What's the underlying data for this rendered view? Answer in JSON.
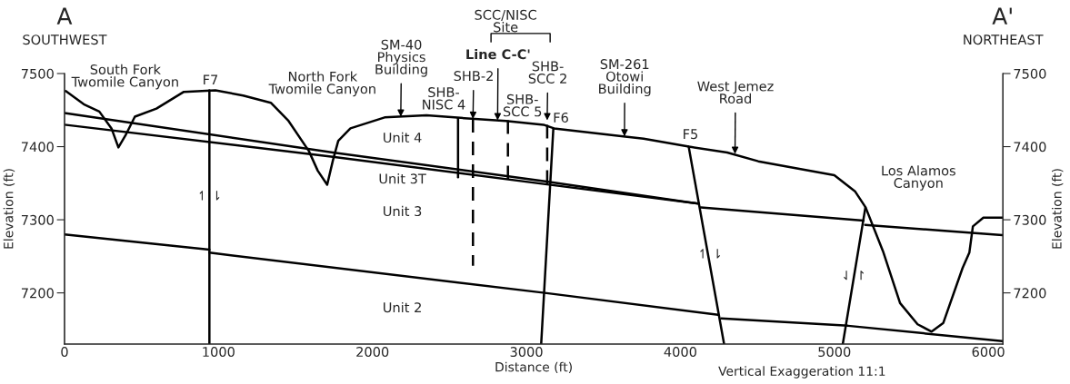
{
  "chart_data": {
    "type": "line",
    "xlabel": "Distance (ft)",
    "ylabel": "Elevation (ft)",
    "y2label": "Elevation (ft)",
    "xlim": [
      0,
      6095
    ],
    "xticks": [
      0,
      1000,
      2000,
      3000,
      4000,
      5000,
      6000
    ],
    "ylim": [
      7130,
      7500
    ],
    "yticks": [
      7200,
      7300,
      7400,
      7500
    ],
    "y2lim": [
      7130,
      7500
    ],
    "y2ticks": [
      7200,
      7300,
      7400,
      7500
    ],
    "grid": false,
    "legend": false,
    "series": [
      {
        "color": "#000000",
        "x": [
          8,
          125,
          226,
          305,
          350,
          395,
          457,
          597,
          775,
          980,
          1160,
          1340,
          1452,
          1587,
          1645,
          1706,
          1743,
          1778,
          1857,
          2079,
          2351,
          2598,
          2868,
          3111,
          3179,
          3629,
          3761,
          4056,
          4304,
          4506,
          5000,
          5134,
          5203,
          5316,
          5427,
          5541,
          5632,
          5708,
          5833,
          5877,
          5900,
          5968,
          6091
        ],
        "values": [
          7476,
          7458,
          7448,
          7425,
          7399,
          7415,
          7441,
          7452,
          7475,
          7477,
          7470,
          7460,
          7436,
          7394,
          7367,
          7348,
          7381,
          7408,
          7425,
          7440,
          7443,
          7439,
          7435,
          7430,
          7425,
          7414,
          7411,
          7400,
          7392,
          7380,
          7361,
          7339,
          7317,
          7257,
          7186,
          7157,
          7147,
          7159,
          7234,
          7255,
          7291,
          7303,
          7303
        ]
      },
      {
        "color": "#000000",
        "x": [
          0,
          1743,
          3111,
          4120
        ],
        "values": [
          7446,
          7392,
          7353,
          7322
        ]
      },
      {
        "color": "#000000",
        "x": [
          0,
          1743,
          3111,
          4120
        ],
        "values": [
          7430,
          7386,
          7349,
          7322
        ]
      },
      {
        "color": "#000000",
        "x": [
          4133,
          5190
        ],
        "values": [
          7317,
          7299
        ]
      },
      {
        "color": "#000000",
        "x": [
          5200,
          6091
        ],
        "values": [
          7293,
          7279
        ]
      },
      {
        "color": "#000000",
        "x": [
          0,
          941
        ],
        "values": [
          7280,
          7259
        ]
      },
      {
        "color": "#000000",
        "x": [
          941,
          3119,
          4245
        ],
        "values": [
          7255,
          7200,
          7170
        ]
      },
      {
        "color": "#000000",
        "x": [
          4266,
          5089,
          6091
        ],
        "values": [
          7165,
          7155,
          7134
        ]
      },
      {
        "color": "#000000",
        "x": [
          941,
          941
        ],
        "values": [
          7130,
          7477
        ]
      },
      {
        "color": "#000000",
        "x": [
          3096,
          3175
        ],
        "values": [
          7130,
          7425
        ]
      },
      {
        "color": "#000000",
        "x": [
          4054,
          4284
        ],
        "values": [
          7400,
          7130
        ]
      },
      {
        "color": "#000000",
        "x": [
          5055,
          5202
        ],
        "values": [
          7130,
          7317
        ]
      },
      {
        "color": "#000000",
        "x": [
          2556,
          2556
        ],
        "values": [
          7439,
          7358
        ],
        "line_style": "solid"
      },
      {
        "color": "#000000",
        "x": [
          2653,
          2653
        ],
        "values": [
          7438,
          7237
        ],
        "line_style": "dashed"
      },
      {
        "color": "#000000",
        "x": [
          2880,
          2880
        ],
        "values": [
          7436,
          7353
        ],
        "line_style": "dashed"
      },
      {
        "color": "#000000",
        "x": [
          3135,
          3135
        ],
        "values": [
          7430,
          7347
        ],
        "line_style": "dashed"
      }
    ],
    "annotations": [
      "A",
      "SOUTHWEST",
      "A'",
      "NORTHEAST",
      "Vertical Exaggeration 11:1",
      "South Fork\nTwomile Canyon",
      "F7",
      "North Fork\nTwomile Canyon",
      "Unit 4",
      "Unit 3T",
      "Unit 3",
      "Unit 2",
      "F6",
      "F5",
      "Los Alamos\nCanyon",
      "SHB-\nNISC 4",
      "SHB-\nSCC 5",
      "↿ ⇂",
      "↿ ⇂",
      "⇃ ↾",
      "SCC/NISC\nSite",
      {
        "text": "SM-40\nPhysics\nBuilding",
        "x": 2184,
        "y": 7441
      },
      {
        "text": "SHB-2",
        "x": 2653,
        "y": 7438
      },
      {
        "text": "Line C-C'",
        "x": 2813,
        "y": 7436
      },
      {
        "text": "SHB-\nSCC 2",
        "x": 3135,
        "y": 7436
      },
      {
        "text": "SM-261\nOtowi\nBuilding",
        "x": 3637,
        "y": 7414
      },
      {
        "text": "West Jemez\nRoad",
        "x": 4355,
        "y": 7390
      }
    ]
  }
}
